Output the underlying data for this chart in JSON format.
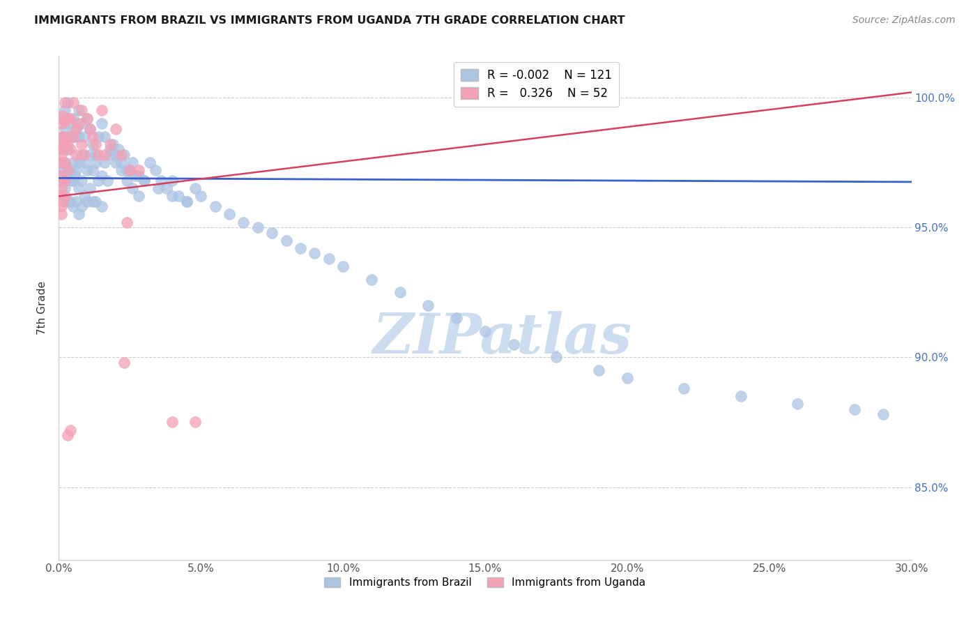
{
  "title": "IMMIGRANTS FROM BRAZIL VS IMMIGRANTS FROM UGANDA 7TH GRADE CORRELATION CHART",
  "source": "Source: ZipAtlas.com",
  "ylabel": "7th Grade",
  "ytick_labels": [
    "85.0%",
    "90.0%",
    "95.0%",
    "100.0%"
  ],
  "ytick_values": [
    0.85,
    0.9,
    0.95,
    1.0
  ],
  "xmin": 0.0,
  "xmax": 0.3,
  "ymin": 0.822,
  "ymax": 1.016,
  "legend_brazil_r": "-0.002",
  "legend_brazil_n": "121",
  "legend_uganda_r": "0.326",
  "legend_uganda_n": "52",
  "brazil_color": "#aac4e2",
  "uganda_color": "#f4a0b5",
  "brazil_line_color": "#3a5fcd",
  "uganda_line_color": "#d44060",
  "watermark_text": "ZIPatlas",
  "watermark_color": "#ccddf0",
  "brazil_line_x": [
    0.0,
    0.3
  ],
  "brazil_line_y": [
    0.969,
    0.9675
  ],
  "uganda_line_x": [
    0.0,
    0.3
  ],
  "uganda_line_y": [
    0.962,
    1.002
  ],
  "brazil_scatter_x": [
    0.0005,
    0.0008,
    0.001,
    0.001,
    0.001,
    0.0015,
    0.0015,
    0.002,
    0.002,
    0.002,
    0.002,
    0.0025,
    0.0025,
    0.003,
    0.003,
    0.003,
    0.003,
    0.0035,
    0.004,
    0.004,
    0.004,
    0.0045,
    0.005,
    0.005,
    0.005,
    0.005,
    0.0055,
    0.006,
    0.006,
    0.006,
    0.007,
    0.007,
    0.007,
    0.007,
    0.008,
    0.008,
    0.008,
    0.009,
    0.009,
    0.01,
    0.01,
    0.011,
    0.011,
    0.012,
    0.012,
    0.013,
    0.013,
    0.014,
    0.015,
    0.015,
    0.016,
    0.017,
    0.018,
    0.019,
    0.02,
    0.021,
    0.022,
    0.023,
    0.024,
    0.025,
    0.026,
    0.027,
    0.028,
    0.03,
    0.032,
    0.034,
    0.036,
    0.038,
    0.04,
    0.042,
    0.045,
    0.048,
    0.05,
    0.055,
    0.06,
    0.065,
    0.07,
    0.075,
    0.08,
    0.085,
    0.09,
    0.095,
    0.1,
    0.11,
    0.12,
    0.13,
    0.14,
    0.15,
    0.16,
    0.175,
    0.19,
    0.2,
    0.22,
    0.24,
    0.26,
    0.28,
    0.29,
    0.003,
    0.004,
    0.005,
    0.006,
    0.007,
    0.008,
    0.009,
    0.01,
    0.011,
    0.012,
    0.013,
    0.014,
    0.015,
    0.016,
    0.018,
    0.02,
    0.022,
    0.024,
    0.026,
    0.028,
    0.03,
    0.035,
    0.04,
    0.045
  ],
  "brazil_scatter_y": [
    0.972,
    0.975,
    0.968,
    0.98,
    0.992,
    0.97,
    0.985,
    0.965,
    0.975,
    0.988,
    0.995,
    0.968,
    0.98,
    0.96,
    0.97,
    0.98,
    0.99,
    0.972,
    0.96,
    0.972,
    0.985,
    0.968,
    0.958,
    0.968,
    0.975,
    0.985,
    0.97,
    0.96,
    0.972,
    0.985,
    0.955,
    0.965,
    0.975,
    0.985,
    0.958,
    0.968,
    0.978,
    0.962,
    0.975,
    0.96,
    0.972,
    0.965,
    0.978,
    0.96,
    0.972,
    0.96,
    0.975,
    0.968,
    0.958,
    0.97,
    0.975,
    0.968,
    0.978,
    0.982,
    0.975,
    0.98,
    0.972,
    0.978,
    0.968,
    0.972,
    0.965,
    0.97,
    0.962,
    0.968,
    0.975,
    0.972,
    0.968,
    0.965,
    0.968,
    0.962,
    0.96,
    0.965,
    0.962,
    0.958,
    0.955,
    0.952,
    0.95,
    0.948,
    0.945,
    0.942,
    0.94,
    0.938,
    0.935,
    0.93,
    0.925,
    0.92,
    0.915,
    0.91,
    0.905,
    0.9,
    0.895,
    0.892,
    0.888,
    0.885,
    0.882,
    0.88,
    0.878,
    0.998,
    0.985,
    0.992,
    0.988,
    0.995,
    0.99,
    0.985,
    0.992,
    0.988,
    0.982,
    0.978,
    0.985,
    0.99,
    0.985,
    0.98,
    0.978,
    0.975,
    0.972,
    0.975,
    0.97,
    0.968,
    0.965,
    0.962,
    0.96
  ],
  "uganda_scatter_x": [
    0.0003,
    0.0005,
    0.0008,
    0.001,
    0.001,
    0.0012,
    0.0015,
    0.0015,
    0.002,
    0.002,
    0.002,
    0.002,
    0.0025,
    0.003,
    0.003,
    0.003,
    0.004,
    0.004,
    0.005,
    0.005,
    0.006,
    0.006,
    0.007,
    0.008,
    0.008,
    0.009,
    0.01,
    0.011,
    0.012,
    0.013,
    0.014,
    0.015,
    0.016,
    0.018,
    0.02,
    0.022,
    0.025,
    0.028,
    0.0004,
    0.0006,
    0.0008,
    0.001,
    0.001,
    0.0015,
    0.002,
    0.002,
    0.003,
    0.004,
    0.023,
    0.04,
    0.048,
    0.024
  ],
  "uganda_scatter_y": [
    0.97,
    0.975,
    0.982,
    0.978,
    0.99,
    0.985,
    0.98,
    0.993,
    0.975,
    0.983,
    0.991,
    0.998,
    0.985,
    0.972,
    0.982,
    0.992,
    0.98,
    0.992,
    0.985,
    0.998,
    0.978,
    0.988,
    0.99,
    0.995,
    0.982,
    0.978,
    0.992,
    0.988,
    0.985,
    0.982,
    0.978,
    0.995,
    0.978,
    0.982,
    0.988,
    0.978,
    0.972,
    0.972,
    0.962,
    0.968,
    0.958,
    0.965,
    0.955,
    0.96,
    0.968,
    0.962,
    0.87,
    0.872,
    0.898,
    0.875,
    0.875,
    0.952
  ]
}
